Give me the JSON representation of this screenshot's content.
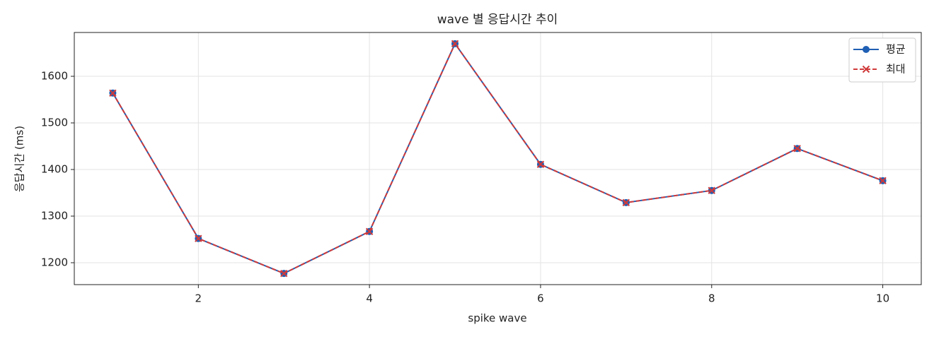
{
  "chart_data": {
    "type": "line",
    "title": "wave 별 응답시간 추이",
    "x_label": "spike wave",
    "y_label": "응답시간 (ms)",
    "x": [
      1,
      2,
      3,
      4,
      5,
      6,
      7,
      8,
      9,
      10
    ],
    "series": [
      {
        "name": "평균",
        "color": "#1f5fb4",
        "linestyle": "solid",
        "marker": "o",
        "values": [
          1564,
          1252,
          1177,
          1267,
          1670,
          1411,
          1329,
          1355,
          1445,
          1376
        ]
      },
      {
        "name": "최대",
        "color": "#d03a3a",
        "linestyle": "dashed",
        "marker": "x",
        "values": [
          1564,
          1252,
          1177,
          1267,
          1670,
          1411,
          1329,
          1355,
          1445,
          1376
        ]
      }
    ],
    "xlim": [
      0.55,
      10.45
    ],
    "ylim": [
      1153,
      1694
    ],
    "xticks": [
      2,
      4,
      6,
      8,
      10
    ],
    "yticks": [
      1200,
      1300,
      1400,
      1500,
      1600
    ],
    "grid": true,
    "legend": "upper right"
  }
}
